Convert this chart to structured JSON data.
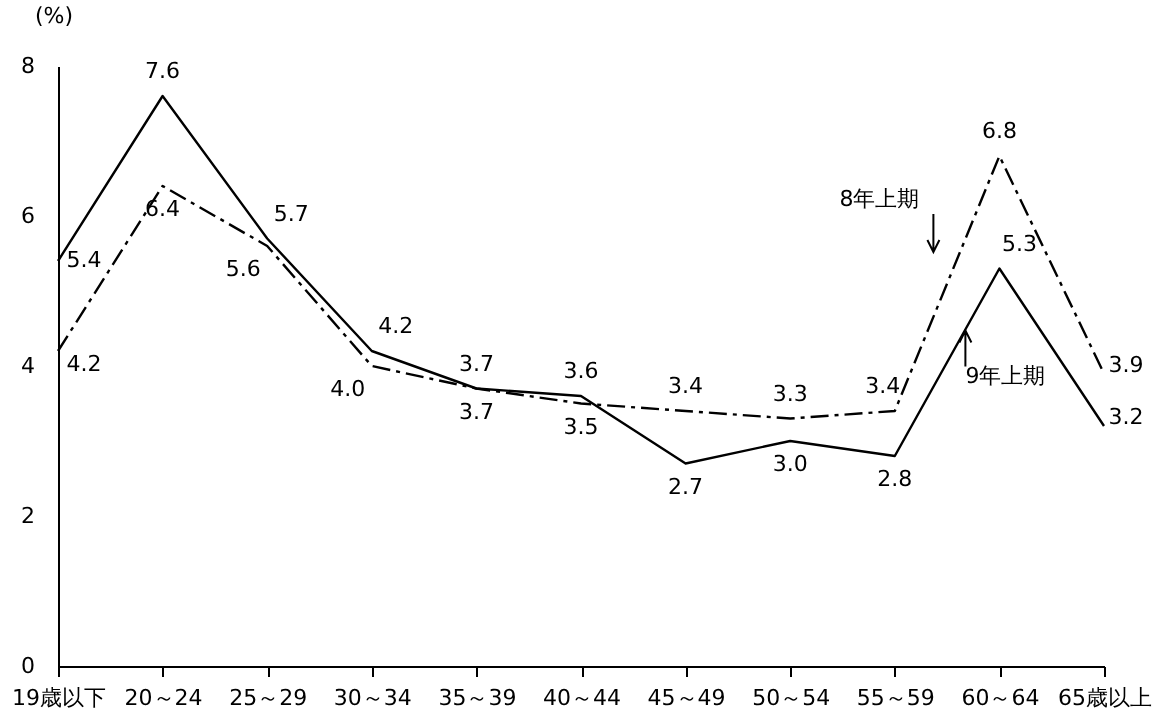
{
  "chart_data": {
    "type": "line",
    "ylabel": "(%)",
    "categories": [
      "19歳以下",
      "20～24",
      "25～29",
      "30～34",
      "35～39",
      "40～44",
      "45～49",
      "50～54",
      "55～59",
      "60～64",
      "65歳以上"
    ],
    "series": [
      {
        "name": "8年上期",
        "color": "#000000",
        "line_style": "dashed",
        "values": [
          4.2,
          6.4,
          5.6,
          4.0,
          3.7,
          3.5,
          3.4,
          3.3,
          3.4,
          6.8,
          3.9
        ],
        "value_labels": [
          "4.2",
          "6.4",
          "5.6",
          "4.0",
          "3.7",
          "3.5",
          "3.4",
          "3.3",
          "3.4",
          "6.8",
          "3.9"
        ]
      },
      {
        "name": "9年上期",
        "color": "#000000",
        "line_style": "solid",
        "values": [
          5.4,
          7.6,
          5.7,
          4.2,
          3.7,
          3.6,
          2.7,
          3.0,
          2.8,
          5.3,
          3.2
        ],
        "value_labels": [
          "5.4",
          "7.6",
          "5.7",
          "4.2",
          "3.7",
          "3.6",
          "2.7",
          "3.0",
          "2.8",
          "5.3",
          "3.2"
        ]
      }
    ],
    "ylim": [
      0,
      8
    ],
    "yticks": [
      0,
      2,
      4,
      6,
      8
    ],
    "grid": false,
    "legend": "right",
    "marker": "none"
  }
}
